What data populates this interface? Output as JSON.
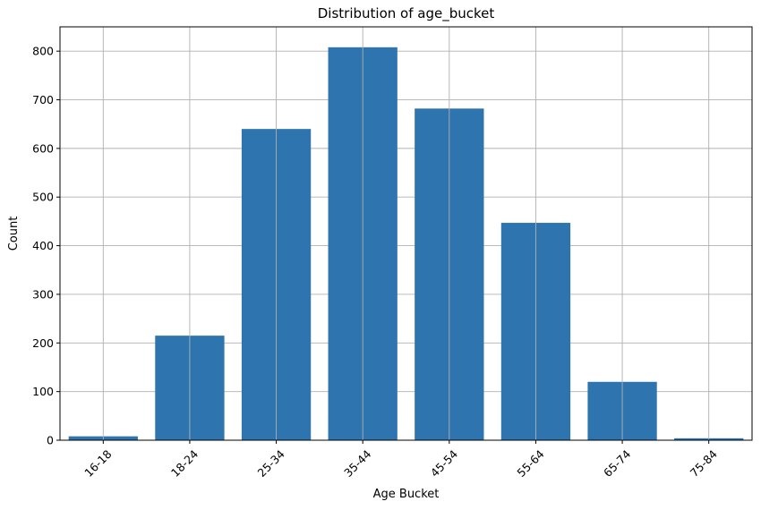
{
  "chart_data": {
    "type": "bar",
    "title": "Distribution of age_bucket",
    "xlabel": "Age Bucket",
    "ylabel": "Count",
    "categories": [
      "16-18",
      "18-24",
      "25-34",
      "35-44",
      "45-54",
      "55-64",
      "65-74",
      "75-84"
    ],
    "values": [
      8,
      215,
      640,
      808,
      682,
      447,
      120,
      4
    ],
    "ylim": [
      0,
      850
    ],
    "yticks": [
      0,
      100,
      200,
      300,
      400,
      500,
      600,
      700,
      800
    ],
    "grid": true,
    "legend": "none",
    "bar_color": "#2e75b0",
    "xtick_rotation_deg": 45
  }
}
